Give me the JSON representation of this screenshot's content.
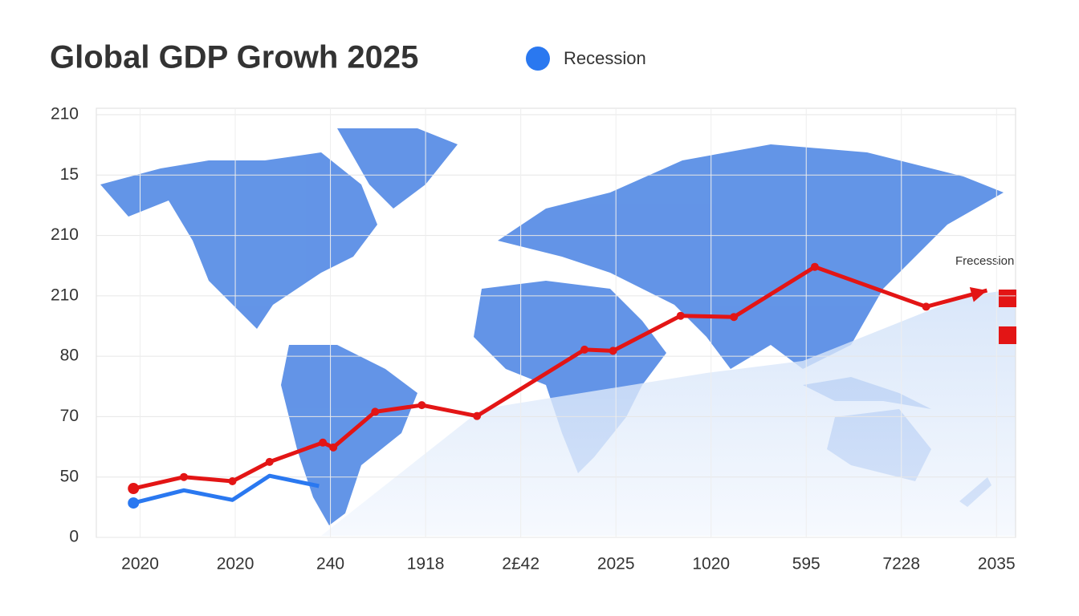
{
  "chart_data": {
    "type": "line",
    "title": "Global GDP Growh 2025",
    "annotation": "Frecession",
    "categories": [
      "2020",
      "2020",
      "240",
      "1918",
      "2£42",
      "2025",
      "1020",
      "595",
      "7228",
      "2035"
    ],
    "xlim": [
      -0.46,
      9.2
    ],
    "ylim": [
      0,
      7
    ],
    "yticks": [
      0,
      1,
      2,
      3,
      4,
      5,
      6,
      7
    ],
    "ytick_labels": [
      "0",
      "50",
      "70",
      "80",
      "210",
      "210",
      "15",
      "210"
    ],
    "grid": true,
    "series": [
      {
        "color": "#e31515",
        "x": [
          -0.07,
          0.46,
          0.97,
          1.36,
          1.92,
          2.03,
          2.47,
          2.96,
          3.54,
          4.67,
          4.97,
          5.68,
          6.24,
          7.09,
          8.26,
          8.9
        ],
        "values": [
          0.81,
          1.0,
          0.93,
          1.25,
          1.57,
          1.49,
          2.08,
          2.19,
          2.01,
          3.11,
          3.09,
          3.67,
          3.65,
          4.48,
          3.82,
          4.09
        ]
      },
      {
        "name": "Recession",
        "color": "#2a78f0",
        "x": [
          -0.07,
          0.46,
          0.97,
          1.36,
          1.88
        ],
        "values": [
          0.57,
          0.78,
          0.62,
          1.02,
          0.85
        ]
      }
    ]
  }
}
